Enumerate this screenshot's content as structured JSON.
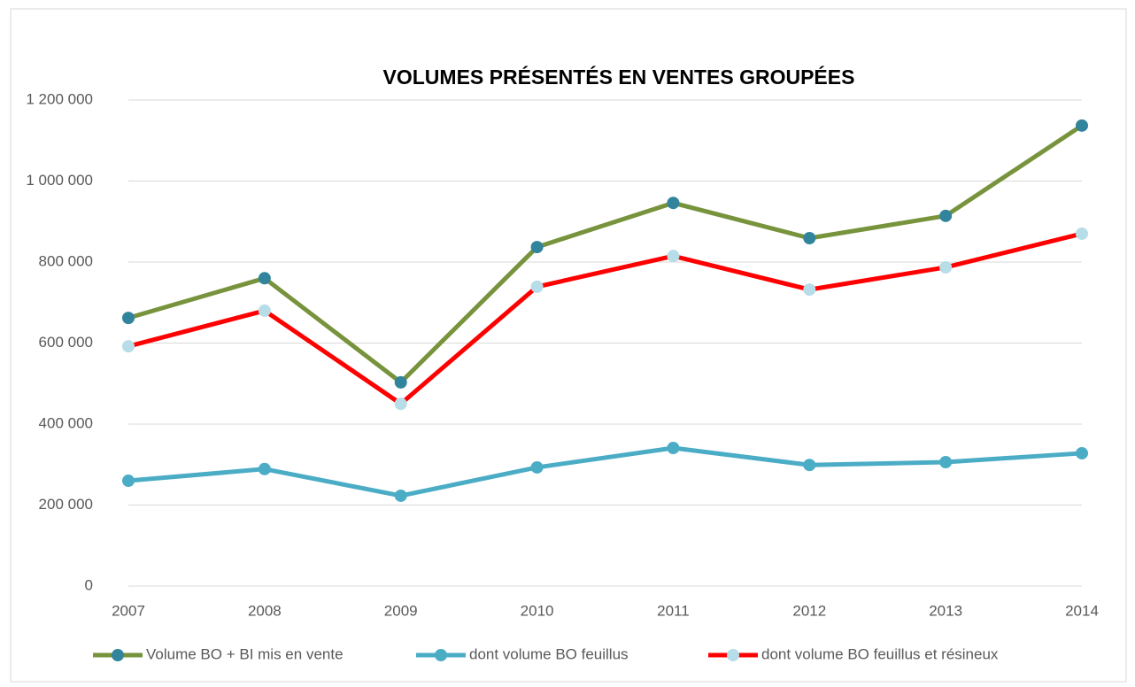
{
  "chart_data": {
    "type": "line",
    "title": "VOLUMES PRÉSENTÉS EN VENTES GROUPÉES",
    "categories": [
      "2007",
      "2008",
      "2009",
      "2010",
      "2011",
      "2012",
      "2013",
      "2014"
    ],
    "series": [
      {
        "name": "Volume BO + BI mis en vente",
        "color": "#77933c",
        "marker_color": "#31849b",
        "values": [
          662000,
          760000,
          503000,
          837000,
          946000,
          859000,
          914000,
          1137000
        ]
      },
      {
        "name": "dont volume BO feuillus",
        "color": "#4bacc6",
        "marker_color": "#4bacc6",
        "values": [
          260000,
          289000,
          223000,
          293000,
          341000,
          299000,
          306000,
          328000
        ]
      },
      {
        "name": "dont volume BO feuillus et résineux",
        "color": "#ff0000",
        "marker_color": "#b7dde8",
        "values": [
          592000,
          680000,
          450000,
          739000,
          815000,
          732000,
          787000,
          870000
        ]
      }
    ],
    "ylim": [
      0,
      1200000
    ],
    "yticks": [
      0,
      {
        "value": 200000,
        "label": "200 000"
      },
      {
        "value": 400000,
        "label": "400 000"
      },
      {
        "value": 600000,
        "label": "600 000"
      },
      {
        "value": 800000,
        "label": "800 000"
      },
      {
        "value": 1000000,
        "label": "1 000 000"
      },
      {
        "value": 1200000,
        "label": "1 200 000"
      }
    ],
    "grid": true,
    "legend": "bottom"
  }
}
